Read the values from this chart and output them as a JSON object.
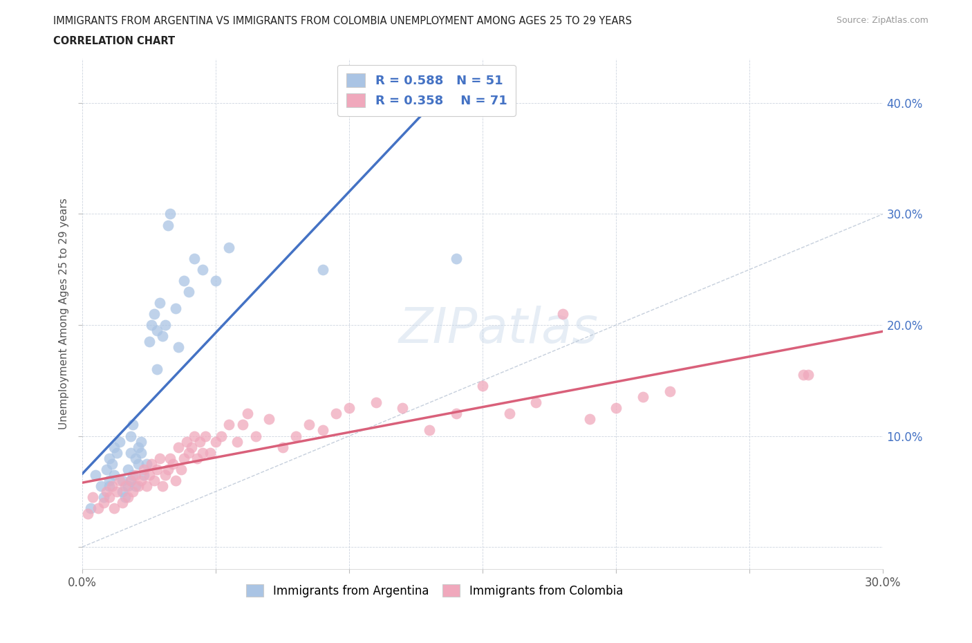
{
  "title_line1": "IMMIGRANTS FROM ARGENTINA VS IMMIGRANTS FROM COLOMBIA UNEMPLOYMENT AMONG AGES 25 TO 29 YEARS",
  "title_line2": "CORRELATION CHART",
  "source": "Source: ZipAtlas.com",
  "ylabel": "Unemployment Among Ages 25 to 29 years",
  "xlim": [
    0.0,
    0.3
  ],
  "ylim": [
    -0.02,
    0.44
  ],
  "xticks": [
    0.0,
    0.05,
    0.1,
    0.15,
    0.2,
    0.25,
    0.3
  ],
  "yticks": [
    0.0,
    0.1,
    0.2,
    0.3,
    0.4
  ],
  "right_ytick_labels": [
    "",
    "10.0%",
    "20.0%",
    "30.0%",
    "40.0%"
  ],
  "bottom_xtick_labels": [
    "0.0%",
    "",
    "",
    "",
    "",
    "",
    "30.0%"
  ],
  "argentina_color": "#aac4e4",
  "colombia_color": "#f0a8bc",
  "argentina_line_color": "#4472c4",
  "colombia_line_color": "#d9607a",
  "diagonal_color": "#b8c4d4",
  "R_argentina": 0.588,
  "N_argentina": 51,
  "R_colombia": 0.358,
  "N_colombia": 71,
  "watermark": "ZIPatlas",
  "argentina_x": [
    0.003,
    0.005,
    0.007,
    0.008,
    0.009,
    0.01,
    0.01,
    0.01,
    0.011,
    0.012,
    0.012,
    0.013,
    0.014,
    0.015,
    0.015,
    0.016,
    0.017,
    0.017,
    0.018,
    0.018,
    0.018,
    0.019,
    0.019,
    0.02,
    0.02,
    0.021,
    0.021,
    0.022,
    0.022,
    0.023,
    0.024,
    0.025,
    0.026,
    0.027,
    0.028,
    0.028,
    0.029,
    0.03,
    0.031,
    0.032,
    0.033,
    0.035,
    0.036,
    0.038,
    0.04,
    0.042,
    0.045,
    0.05,
    0.055,
    0.09,
    0.14
  ],
  "argentina_y": [
    0.035,
    0.065,
    0.055,
    0.045,
    0.07,
    0.08,
    0.06,
    0.055,
    0.075,
    0.065,
    0.09,
    0.085,
    0.095,
    0.06,
    0.05,
    0.045,
    0.055,
    0.07,
    0.085,
    0.06,
    0.1,
    0.11,
    0.065,
    0.08,
    0.055,
    0.075,
    0.09,
    0.085,
    0.095,
    0.065,
    0.075,
    0.185,
    0.2,
    0.21,
    0.195,
    0.16,
    0.22,
    0.19,
    0.2,
    0.29,
    0.3,
    0.215,
    0.18,
    0.24,
    0.23,
    0.26,
    0.25,
    0.24,
    0.27,
    0.25,
    0.26
  ],
  "colombia_x": [
    0.002,
    0.004,
    0.006,
    0.008,
    0.009,
    0.01,
    0.011,
    0.012,
    0.013,
    0.014,
    0.015,
    0.016,
    0.017,
    0.018,
    0.019,
    0.02,
    0.021,
    0.022,
    0.023,
    0.024,
    0.025,
    0.026,
    0.027,
    0.028,
    0.029,
    0.03,
    0.031,
    0.032,
    0.033,
    0.034,
    0.035,
    0.036,
    0.037,
    0.038,
    0.039,
    0.04,
    0.041,
    0.042,
    0.043,
    0.044,
    0.045,
    0.046,
    0.048,
    0.05,
    0.052,
    0.055,
    0.058,
    0.06,
    0.062,
    0.065,
    0.07,
    0.075,
    0.08,
    0.085,
    0.09,
    0.095,
    0.1,
    0.11,
    0.12,
    0.13,
    0.14,
    0.15,
    0.16,
    0.17,
    0.18,
    0.19,
    0.2,
    0.21,
    0.22,
    0.27,
    0.272
  ],
  "colombia_y": [
    0.03,
    0.045,
    0.035,
    0.04,
    0.05,
    0.045,
    0.055,
    0.035,
    0.05,
    0.06,
    0.04,
    0.055,
    0.045,
    0.06,
    0.05,
    0.065,
    0.055,
    0.06,
    0.07,
    0.055,
    0.065,
    0.075,
    0.06,
    0.07,
    0.08,
    0.055,
    0.065,
    0.07,
    0.08,
    0.075,
    0.06,
    0.09,
    0.07,
    0.08,
    0.095,
    0.085,
    0.09,
    0.1,
    0.08,
    0.095,
    0.085,
    0.1,
    0.085,
    0.095,
    0.1,
    0.11,
    0.095,
    0.11,
    0.12,
    0.1,
    0.115,
    0.09,
    0.1,
    0.11,
    0.105,
    0.12,
    0.125,
    0.13,
    0.125,
    0.105,
    0.12,
    0.145,
    0.12,
    0.13,
    0.21,
    0.115,
    0.125,
    0.135,
    0.14,
    0.155,
    0.155
  ]
}
